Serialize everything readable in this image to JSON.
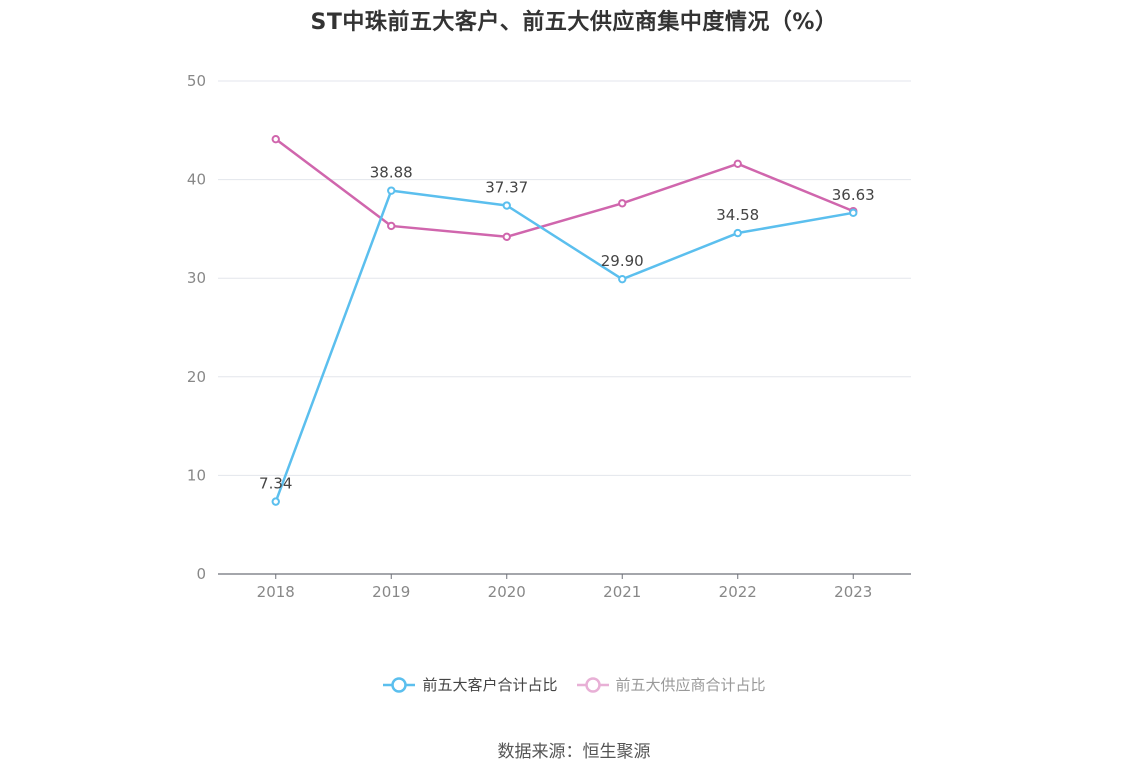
{
  "chart_data": {
    "type": "line",
    "title": "ST中珠前五大客户、前五大供应商集中度情况（%）",
    "xlabel": "",
    "ylabel": "",
    "categories": [
      "2018",
      "2019",
      "2020",
      "2021",
      "2022",
      "2023"
    ],
    "ylim": [
      0,
      50
    ],
    "yticks": [
      0,
      10,
      20,
      30,
      40,
      50
    ],
    "grid": true,
    "legend_position": "bottom-center",
    "series": [
      {
        "name": "前五大客户合计占比",
        "color": "#5bbfee",
        "values": [
          7.34,
          38.88,
          37.37,
          29.9,
          34.58,
          36.63
        ],
        "labels": [
          "7.34",
          "38.88",
          "37.37",
          "29.90",
          "34.58",
          "36.63"
        ]
      },
      {
        "name": "前五大供应商合计占比",
        "color": "#d066ad",
        "legend_color": "#e8b0d6",
        "values": [
          44.1,
          35.3,
          34.2,
          37.6,
          41.6,
          36.8
        ],
        "labels": []
      }
    ]
  },
  "source": "数据来源：恒生聚源"
}
